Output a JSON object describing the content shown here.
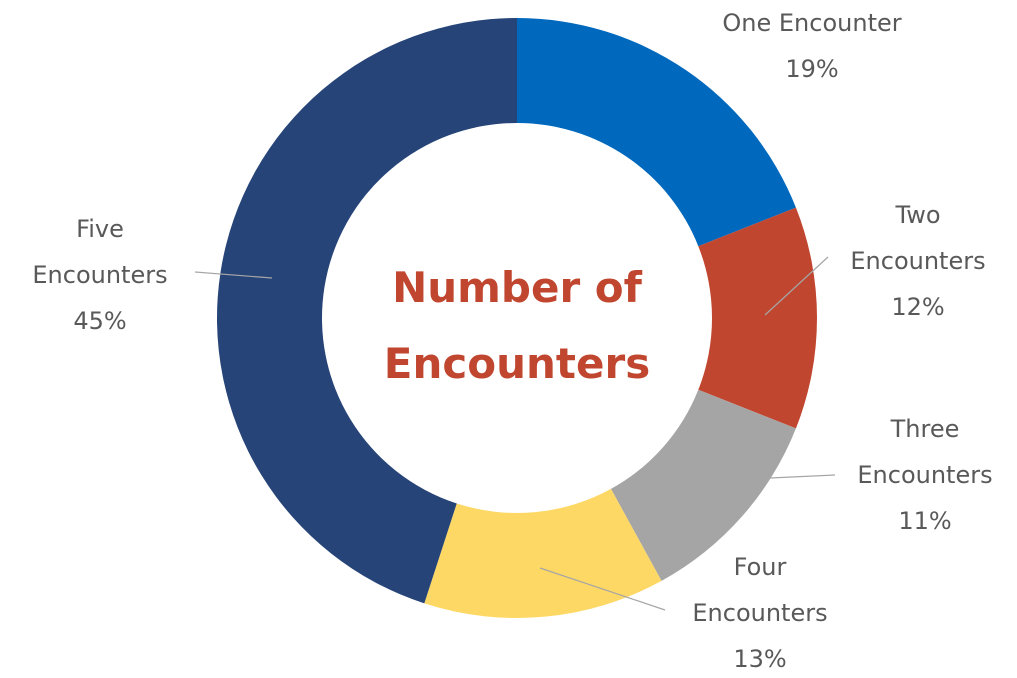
{
  "chart_data": {
    "type": "donut",
    "title": "Number of Encounters",
    "categories": [
      "One Encounter",
      "Two Encounters",
      "Three Encounters",
      "Four Encounters",
      "Five Encounters"
    ],
    "values": [
      19,
      12,
      11,
      13,
      45
    ],
    "value_labels": [
      "19%",
      "12%",
      "11%",
      "13%",
      "45%"
    ],
    "colors": [
      "#0068bd",
      "#c0462f",
      "#a5a5a5",
      "#fdd865",
      "#264478"
    ]
  }
}
